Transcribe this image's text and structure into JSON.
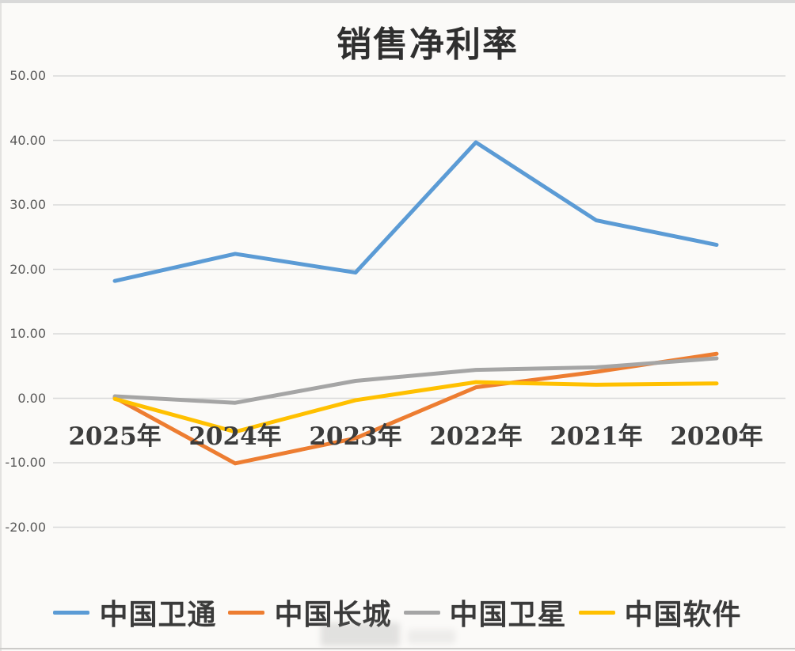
{
  "chart_data": {
    "type": "line",
    "title": "销售净利率",
    "categories": [
      "2025年",
      "2024年",
      "2023年",
      "2022年",
      "2021年",
      "2020年"
    ],
    "series": [
      {
        "name": "中国卫通",
        "color": "#5B9BD5",
        "values": [
          18.2,
          22.4,
          19.5,
          39.7,
          27.6,
          23.8
        ]
      },
      {
        "name": "中国长城",
        "color": "#ED7D31",
        "values": [
          0.1,
          -10.1,
          -6.2,
          1.7,
          4.1,
          6.9
        ]
      },
      {
        "name": "中国卫星",
        "color": "#A5A5A5",
        "values": [
          0.3,
          -0.7,
          2.7,
          4.4,
          4.8,
          6.2
        ]
      },
      {
        "name": "中国软件",
        "color": "#FFC000",
        "values": [
          -0.1,
          -5.2,
          -0.3,
          2.5,
          2.1,
          2.3
        ]
      }
    ],
    "y_axis": {
      "tick_labels": [
        "50.00",
        "40.00",
        "30.00",
        "20.00",
        "10.00",
        "0.00",
        "-10.00",
        "-20.00"
      ],
      "tick_values": [
        50,
        40,
        30,
        20,
        10,
        0,
        -10,
        -20
      ],
      "min": -20,
      "max": 50
    },
    "grid": true,
    "legend_position": "bottom",
    "gridline_color": "#d9d9d9"
  }
}
